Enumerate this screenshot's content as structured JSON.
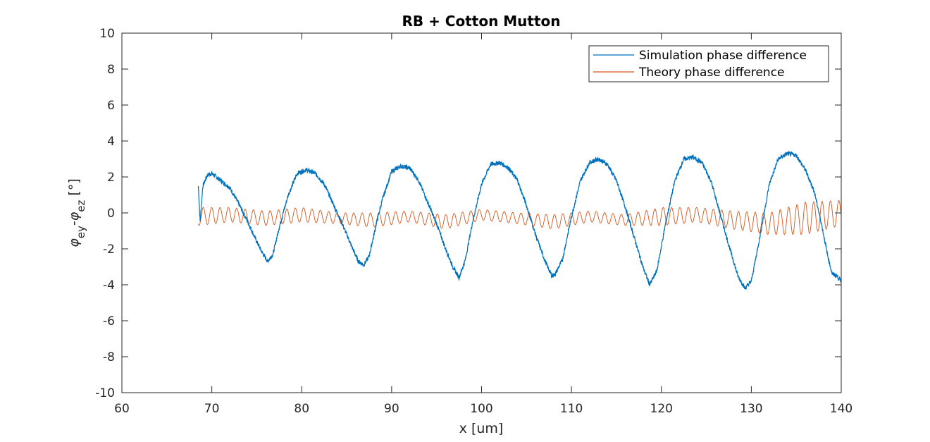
{
  "chart_data": {
    "type": "line",
    "title": "RB + Cotton Mutton",
    "xlabel": "x [um]",
    "ylabel": {
      "phi1": "φ",
      "sub1": "ey",
      "minus": "-",
      "phi2": "φ",
      "sub2": "ez",
      "unit": " [°]"
    },
    "xlim": [
      60,
      140
    ],
    "ylim": [
      -10,
      10
    ],
    "xticks": [
      60,
      70,
      80,
      90,
      100,
      110,
      120,
      130,
      140
    ],
    "yticks": [
      -10,
      -8,
      -6,
      -4,
      -2,
      0,
      2,
      4,
      6,
      8,
      10
    ],
    "grid": false,
    "legend_position": "top-right",
    "series": [
      {
        "name": "Simulation phase difference",
        "color": "#0072BD",
        "x": [
          68.5,
          68.7,
          69.0,
          69.5,
          70.0,
          71.0,
          72.0,
          73.0,
          74.0,
          75.0,
          75.6,
          76.2,
          76.8,
          77.5,
          78.5,
          79.5,
          80.5,
          81.5,
          82.5,
          83.5,
          84.5,
          85.5,
          86.3,
          86.9,
          87.5,
          88.3,
          89.0,
          90.0,
          91.0,
          92.0,
          93.0,
          94.0,
          95.0,
          96.0,
          96.8,
          97.5,
          98.2,
          99.0,
          100.0,
          101.0,
          102.0,
          103.0,
          104.0,
          105.0,
          106.0,
          107.0,
          107.8,
          108.2,
          109.0,
          110.0,
          111.0,
          112.0,
          113.0,
          114.0,
          115.0,
          116.0,
          117.0,
          118.0,
          118.7,
          119.5,
          120.5,
          121.5,
          122.5,
          123.5,
          124.5,
          125.5,
          126.5,
          127.5,
          128.5,
          129.3,
          130.0,
          131.0,
          132.0,
          133.0,
          134.0,
          135.0,
          136.0,
          137.0,
          137.8,
          138.5,
          139.0,
          139.5,
          140.0
        ],
        "y": [
          1.5,
          -0.5,
          1.5,
          2.1,
          2.2,
          1.8,
          1.4,
          0.5,
          -0.5,
          -1.6,
          -2.2,
          -2.7,
          -2.3,
          -0.8,
          1.0,
          2.2,
          2.4,
          2.2,
          1.6,
          0.5,
          -0.6,
          -1.8,
          -2.7,
          -2.9,
          -2.4,
          -0.6,
          0.8,
          2.3,
          2.6,
          2.5,
          1.8,
          0.6,
          -0.6,
          -2.0,
          -3.0,
          -3.6,
          -2.6,
          -0.5,
          1.6,
          2.7,
          2.8,
          2.5,
          1.8,
          0.4,
          -1.2,
          -2.6,
          -3.5,
          -3.4,
          -2.6,
          -0.2,
          1.8,
          2.8,
          3.0,
          2.7,
          1.8,
          0.3,
          -1.4,
          -3.1,
          -4.0,
          -3.2,
          -0.5,
          1.8,
          3.0,
          3.1,
          2.8,
          1.8,
          0.0,
          -1.8,
          -3.5,
          -4.2,
          -3.8,
          -1.2,
          1.6,
          3.0,
          3.3,
          3.2,
          2.4,
          1.2,
          -0.6,
          -2.4,
          -3.4,
          -3.5,
          -3.8
        ]
      },
      {
        "name": "Theory phase difference",
        "color": "#D95319",
        "x_start": 68.5,
        "x_end": 140,
        "oscillation_period": 0.93,
        "envelope_x": [
          68.5,
          72,
          76,
          80,
          84,
          88,
          92,
          96,
          100,
          104,
          108,
          112,
          116,
          120,
          124,
          128,
          132,
          136,
          140
        ],
        "envelope_center": [
          -0.2,
          -0.1,
          -0.3,
          -0.1,
          -0.3,
          -0.4,
          -0.2,
          -0.5,
          -0.1,
          -0.3,
          -0.5,
          -0.2,
          -0.4,
          -0.2,
          -0.1,
          -0.4,
          -0.6,
          -0.3,
          0.0
        ],
        "envelope_amplitude": [
          0.5,
          0.4,
          0.4,
          0.4,
          0.3,
          0.4,
          0.3,
          0.4,
          0.3,
          0.3,
          0.4,
          0.3,
          0.3,
          0.5,
          0.4,
          0.5,
          0.6,
          0.9,
          0.7
        ]
      }
    ]
  }
}
